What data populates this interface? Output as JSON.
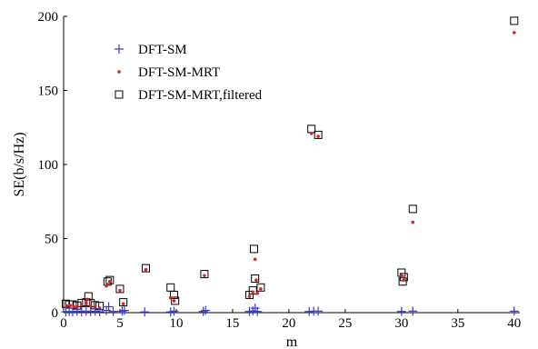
{
  "chart_data": {
    "type": "scatter",
    "title": "",
    "xlabel": "m",
    "ylabel": "SE(b/s/Hz)",
    "xlim": [
      0,
      40.5
    ],
    "ylim": [
      0,
      200
    ],
    "x_ticks": [
      0,
      5,
      10,
      15,
      20,
      25,
      30,
      35,
      40
    ],
    "y_ticks": [
      0,
      50,
      100,
      150,
      200
    ],
    "grid": false,
    "legend_position": "top-left",
    "series": [
      {
        "name": "DFT-SM",
        "marker": "plus",
        "color": "#3b3bd6",
        "points": [
          [
            0.2,
            0.5
          ],
          [
            0.5,
            0.8
          ],
          [
            0.8,
            0.5
          ],
          [
            1.2,
            1
          ],
          [
            1.6,
            0.6
          ],
          [
            2,
            1
          ],
          [
            2.4,
            0.7
          ],
          [
            2.8,
            1
          ],
          [
            3.2,
            0.6
          ],
          [
            3.8,
            1.5
          ],
          [
            4,
            4
          ],
          [
            4.4,
            0.8
          ],
          [
            5.2,
            1
          ],
          [
            5.4,
            1.5
          ],
          [
            7.2,
            0.5
          ],
          [
            9.5,
            0.5
          ],
          [
            9.8,
            1
          ],
          [
            12.4,
            0.8
          ],
          [
            12.6,
            1.5
          ],
          [
            16.5,
            0.8
          ],
          [
            16.8,
            1.2
          ],
          [
            17,
            3
          ],
          [
            17.2,
            0.8
          ],
          [
            21.8,
            0.8
          ],
          [
            22.2,
            1
          ],
          [
            22.6,
            1
          ],
          [
            30,
            0.8
          ],
          [
            31,
            1
          ],
          [
            40,
            1
          ]
        ]
      },
      {
        "name": "DFT-SM-MRT",
        "marker": "dot",
        "color": "#e02020",
        "points": [
          [
            0.3,
            4.5
          ],
          [
            0.6,
            4.8
          ],
          [
            0.9,
            4.2
          ],
          [
            1.2,
            3.8
          ],
          [
            1.6,
            5.5
          ],
          [
            2,
            6.5
          ],
          [
            2.1,
            9
          ],
          [
            2.4,
            4.5
          ],
          [
            2.8,
            3.5
          ],
          [
            3.2,
            3
          ],
          [
            3.8,
            18
          ],
          [
            4.1,
            21
          ],
          [
            5,
            15
          ],
          [
            5.3,
            6
          ],
          [
            7.3,
            29
          ],
          [
            9.5,
            10
          ],
          [
            9.8,
            8
          ],
          [
            12.5,
            25
          ],
          [
            16.5,
            11
          ],
          [
            16.8,
            14
          ],
          [
            17,
            36
          ],
          [
            17.1,
            22
          ],
          [
            17.2,
            13
          ],
          [
            17.5,
            16
          ],
          [
            22,
            121
          ],
          [
            22.6,
            119
          ],
          [
            30,
            25
          ],
          [
            30.2,
            22
          ],
          [
            31,
            61
          ],
          [
            40,
            189
          ]
        ]
      },
      {
        "name": "DFT-SM-MRT,filtered",
        "marker": "square",
        "color": "#000000",
        "points": [
          [
            0.2,
            6
          ],
          [
            0.5,
            5.5
          ],
          [
            0.8,
            5.5
          ],
          [
            1.2,
            4.8
          ],
          [
            1.6,
            6.5
          ],
          [
            2,
            7
          ],
          [
            2.2,
            11
          ],
          [
            2.4,
            6.5
          ],
          [
            2.8,
            5
          ],
          [
            3.2,
            4.5
          ],
          [
            3.9,
            21
          ],
          [
            4.1,
            22
          ],
          [
            5,
            16
          ],
          [
            5.3,
            7
          ],
          [
            7.3,
            30
          ],
          [
            9.5,
            17
          ],
          [
            9.8,
            12
          ],
          [
            9.9,
            8
          ],
          [
            12.5,
            26
          ],
          [
            16.5,
            12
          ],
          [
            16.8,
            15
          ],
          [
            16.9,
            43
          ],
          [
            17,
            23
          ],
          [
            17.5,
            17
          ],
          [
            22,
            124
          ],
          [
            22.6,
            120
          ],
          [
            30,
            27
          ],
          [
            30.1,
            21
          ],
          [
            30.2,
            24
          ],
          [
            31,
            70
          ],
          [
            40,
            197
          ]
        ]
      }
    ]
  }
}
